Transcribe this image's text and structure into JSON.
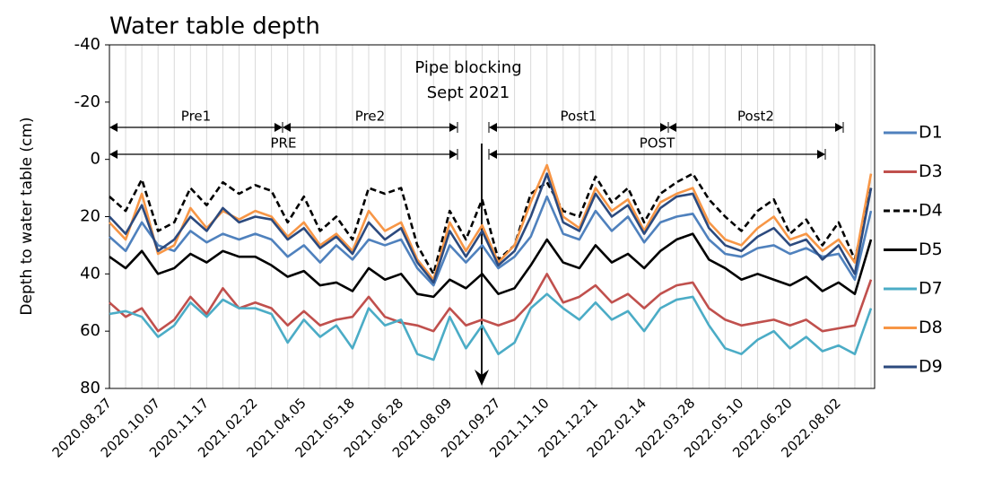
{
  "chart_data": {
    "type": "line",
    "title": "Water table depth",
    "y_label": "Depth to water table (cm)",
    "categories": [
      "2020.08.27",
      null,
      null,
      "2020.10.07",
      null,
      null,
      "2020.11.17",
      null,
      null,
      "2021.02.22",
      null,
      null,
      "2021.04.05",
      null,
      null,
      "2021.05.18",
      null,
      null,
      "2021.06.28",
      null,
      null,
      "2021.08.09",
      null,
      null,
      "2021.09.27",
      null,
      null,
      "2021.11.10",
      null,
      null,
      "2021.12.21",
      null,
      null,
      "2022.02.14",
      null,
      null,
      "2022.03.28",
      null,
      null,
      "2022.05.10",
      null,
      null,
      "2022.06.20",
      null,
      null,
      "2022.08.02",
      null,
      null
    ],
    "ylim": [
      -40,
      80
    ],
    "y_reversed": true,
    "yticks": [
      -40,
      -20,
      0,
      20,
      40,
      60,
      80
    ],
    "annotations": {
      "event": [
        "Pipe blocking",
        "Sept 2021"
      ],
      "periods": [
        "Pre1",
        "Pre2",
        "PRE",
        "Post1",
        "Post2",
        "POST"
      ]
    },
    "series": [
      {
        "name": "D1",
        "color": "#4f81bd",
        "style": "solid",
        "values": [
          27,
          32,
          22,
          30,
          32,
          25,
          29,
          26,
          28,
          26,
          28,
          34,
          30,
          36,
          30,
          35,
          28,
          30,
          28,
          38,
          44,
          30,
          36,
          30,
          38,
          34,
          27,
          13,
          26,
          28,
          18,
          25,
          20,
          29,
          22,
          20,
          19,
          28,
          33,
          34,
          31,
          30,
          33,
          31,
          34,
          33,
          42,
          18
        ]
      },
      {
        "name": "D3",
        "color": "#c0504d",
        "style": "solid",
        "values": [
          50,
          55,
          52,
          60,
          56,
          48,
          54,
          45,
          52,
          50,
          52,
          58,
          53,
          58,
          56,
          55,
          48,
          55,
          57,
          58,
          60,
          52,
          58,
          56,
          58,
          56,
          50,
          40,
          50,
          48,
          44,
          50,
          47,
          52,
          47,
          44,
          43,
          52,
          56,
          58,
          57,
          56,
          58,
          56,
          60,
          59,
          58,
          42
        ]
      },
      {
        "name": "D4",
        "color": "#000000",
        "style": "dashed",
        "values": [
          13,
          18,
          7,
          25,
          22,
          10,
          16,
          8,
          12,
          9,
          11,
          22,
          13,
          25,
          20,
          28,
          10,
          12,
          10,
          30,
          40,
          18,
          28,
          14,
          35,
          30,
          12,
          8,
          18,
          20,
          6,
          15,
          10,
          22,
          12,
          8,
          5,
          14,
          20,
          25,
          18,
          14,
          26,
          21,
          30,
          22,
          35,
          10
        ]
      },
      {
        "name": "D5",
        "color": "#000000",
        "style": "solid",
        "values": [
          34,
          38,
          32,
          40,
          38,
          33,
          36,
          32,
          34,
          34,
          37,
          41,
          39,
          44,
          43,
          46,
          38,
          42,
          40,
          47,
          48,
          42,
          45,
          40,
          47,
          45,
          37,
          28,
          36,
          38,
          30,
          36,
          33,
          38,
          32,
          28,
          26,
          35,
          38,
          42,
          40,
          42,
          44,
          41,
          46,
          43,
          47,
          28
        ]
      },
      {
        "name": "D7",
        "color": "#4bacc6",
        "style": "solid",
        "values": [
          54,
          53,
          55,
          62,
          58,
          50,
          55,
          49,
          52,
          52,
          54,
          64,
          56,
          62,
          58,
          66,
          52,
          58,
          56,
          68,
          70,
          55,
          66,
          58,
          68,
          64,
          52,
          47,
          52,
          56,
          50,
          56,
          53,
          60,
          52,
          49,
          48,
          58,
          66,
          68,
          63,
          60,
          66,
          62,
          67,
          65,
          68,
          52
        ]
      },
      {
        "name": "D8",
        "color": "#f79646",
        "style": "solid",
        "values": [
          22,
          28,
          12,
          33,
          30,
          17,
          24,
          18,
          21,
          18,
          20,
          27,
          22,
          30,
          26,
          32,
          18,
          25,
          22,
          35,
          42,
          22,
          32,
          23,
          36,
          30,
          15,
          2,
          20,
          24,
          10,
          18,
          14,
          25,
          15,
          12,
          10,
          22,
          28,
          30,
          24,
          20,
          28,
          26,
          32,
          28,
          36,
          5
        ]
      },
      {
        "name": "D9",
        "color": "#2c4a7e",
        "style": "solid",
        "values": [
          20,
          26,
          16,
          32,
          28,
          20,
          25,
          17,
          22,
          20,
          21,
          28,
          24,
          31,
          27,
          33,
          22,
          28,
          24,
          36,
          43,
          25,
          34,
          25,
          37,
          32,
          20,
          5,
          22,
          25,
          12,
          20,
          16,
          26,
          17,
          13,
          12,
          24,
          30,
          32,
          27,
          24,
          30,
          28,
          35,
          30,
          40,
          10
        ]
      }
    ]
  }
}
